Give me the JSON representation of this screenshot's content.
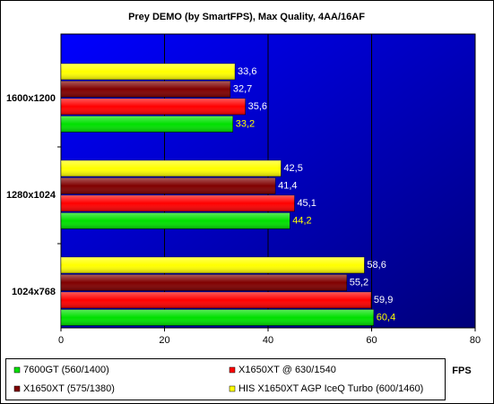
{
  "chart_data": {
    "type": "hbar",
    "title": "Prey DEMO (by SmartFPS), Max Quality, 4AA/16AF",
    "x_label": "FPS",
    "categories": [
      "1600x1200",
      "1280x1024",
      "1024x768"
    ],
    "series": [
      {
        "name": "7600GT (560/1400)",
        "color": "#00e000",
        "values": [
          33.2,
          44.2,
          60.4
        ],
        "value_labels": [
          "33,2",
          "44,2",
          "60,4"
        ]
      },
      {
        "name": "X1650XT @ 630/1540",
        "color": "#ff0000",
        "values": [
          35.6,
          45.1,
          59.9
        ],
        "value_labels": [
          "35,6",
          "45,1",
          "59,9"
        ]
      },
      {
        "name": "X1650XT (575/1380)",
        "color": "#800000",
        "values": [
          32.7,
          41.4,
          55.2
        ],
        "value_labels": [
          "32,7",
          "41,4",
          "55,2"
        ]
      },
      {
        "name": "HIS X1650XT AGP IceQ Turbo (600/1460)",
        "color": "#ffff00",
        "values": [
          33.6,
          42.5,
          58.6
        ],
        "value_labels": [
          "33,6",
          "42,5",
          "58,6"
        ]
      }
    ],
    "xlim": [
      0,
      80
    ],
    "xticks": [
      0,
      20,
      40,
      60,
      80
    ],
    "grid": true
  }
}
